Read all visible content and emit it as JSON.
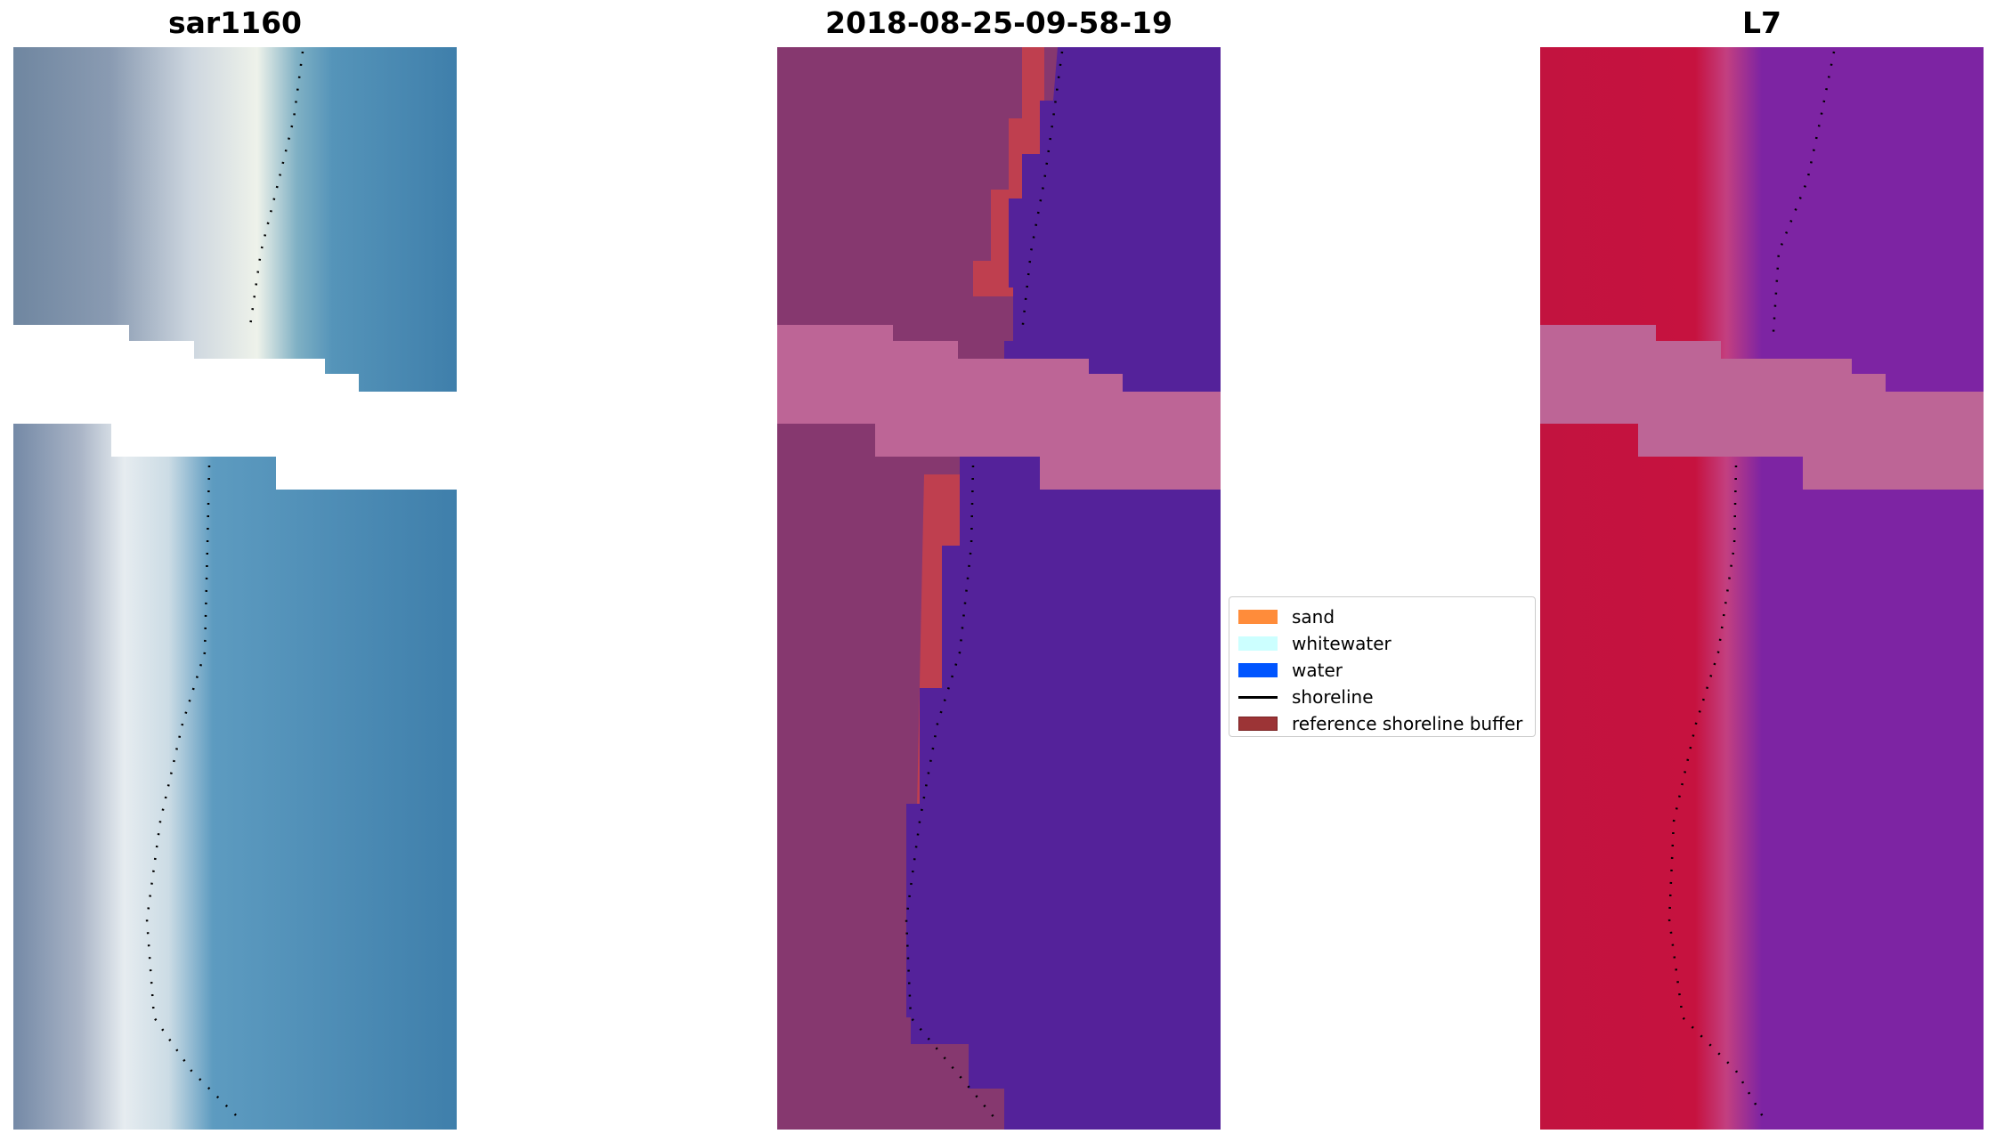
{
  "panels": [
    {
      "id": "rgb",
      "title": "sar1160"
    },
    {
      "id": "classified",
      "title": "2018-08-25-09-58-19"
    },
    {
      "id": "mndwi",
      "title": "L7"
    }
  ],
  "legend": {
    "items": [
      {
        "label": "sand",
        "color": "#ff8c3a",
        "kind": "patch"
      },
      {
        "label": "whitewater",
        "color": "#ccffff",
        "kind": "patch"
      },
      {
        "label": "water",
        "color": "#0055ff",
        "kind": "patch"
      },
      {
        "label": "shoreline",
        "color": "#000000",
        "kind": "line"
      },
      {
        "label": "reference shoreline buffer",
        "color": "#9c3436",
        "kind": "patch"
      }
    ]
  },
  "colors": {
    "rgb_land": "#7f93a8",
    "rgb_beach": "#e4ecef",
    "rgb_water": "#3f7fab",
    "class_land": "#86386f",
    "class_buffer": "#bf3f4f",
    "class_water": "#54229a",
    "mndwi_land": "#c2133f",
    "mndwi_water": "#7d24a3",
    "cloud_mask": "#bd6596"
  }
}
